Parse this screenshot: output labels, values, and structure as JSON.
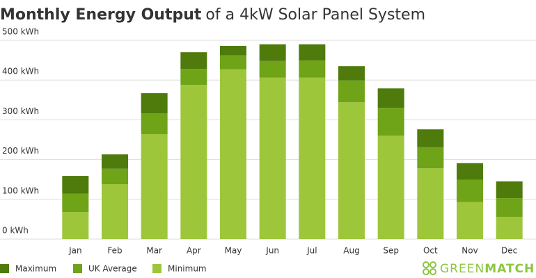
{
  "chart_data": {
    "type": "stacked_bar",
    "title": [
      "Monthly Energy Output",
      "of a 4kW Solar Panel System"
    ],
    "categories": [
      "Jan",
      "Feb",
      "Mar",
      "Apr",
      "May",
      "Jun",
      "Jul",
      "Aug",
      "Sep",
      "Oct",
      "Nov",
      "Dec"
    ],
    "series": [
      {
        "name": "Minimum",
        "color": "#9dc63b",
        "values": [
          68,
          138,
          264,
          388,
          427,
          406,
          406,
          344,
          260,
          178,
          93,
          56
        ]
      },
      {
        "name": "UK Average",
        "color": "#6fa318",
        "values": [
          46,
          39,
          52,
          40,
          35,
          42,
          43,
          55,
          70,
          53,
          56,
          47
        ]
      },
      {
        "name": "Maximum",
        "color": "#4f7a0c",
        "values": [
          45,
          36,
          51,
          42,
          24,
          42,
          41,
          36,
          49,
          45,
          42,
          42
        ]
      }
    ],
    "ylim": [
      0,
      500
    ],
    "yticks": [
      {
        "value": 0,
        "label": "0 kWh"
      },
      {
        "value": 100,
        "label": "100 kWh"
      },
      {
        "value": 200,
        "label": "200 kWh"
      },
      {
        "value": 300,
        "label": "300 kWh"
      },
      {
        "value": 400,
        "label": "400 kWh"
      },
      {
        "value": 500,
        "label": "500 kWh"
      }
    ],
    "grid": true,
    "legend": "bottom-left",
    "logo": [
      "GREEN",
      "MATCH"
    ]
  }
}
